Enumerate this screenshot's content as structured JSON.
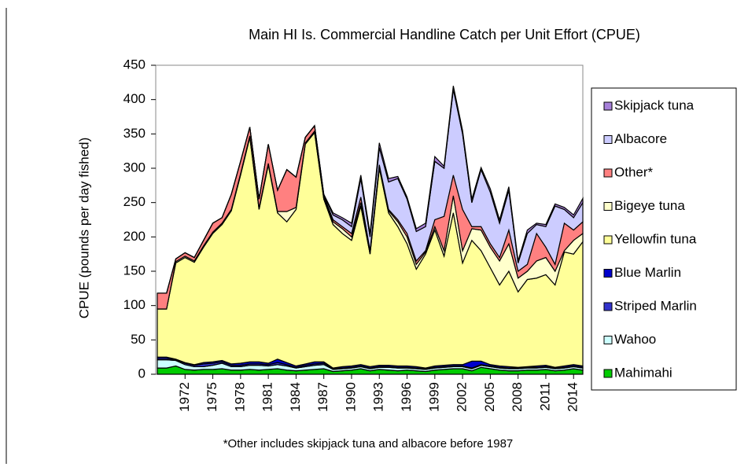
{
  "chart_data": {
    "type": "stacked_area",
    "title": "Main HI Is. Commercial Handline Catch per Unit Effort (CPUE)",
    "y_label": "CPUE (pounds per day fished)",
    "note": "*Other includes skipjack tuna and albacore before 1987",
    "x": [
      1969,
      1970,
      1971,
      1972,
      1973,
      1974,
      1975,
      1976,
      1977,
      1978,
      1979,
      1980,
      1981,
      1982,
      1983,
      1984,
      1985,
      1986,
      1987,
      1988,
      1989,
      1990,
      1991,
      1992,
      1993,
      1994,
      1995,
      1996,
      1997,
      1998,
      1999,
      2000,
      2001,
      2002,
      2003,
      2004,
      2005,
      2006,
      2007,
      2008,
      2009,
      2010,
      2011,
      2012,
      2013,
      2014,
      2015
    ],
    "xlim": [
      1969,
      2015
    ],
    "xticks": [
      1972,
      1975,
      1978,
      1981,
      1984,
      1987,
      1990,
      1993,
      1996,
      1999,
      2002,
      2005,
      2008,
      2011,
      2014
    ],
    "ylim": [
      0,
      450
    ],
    "yticks": [
      0,
      50,
      100,
      150,
      200,
      250,
      300,
      350,
      400,
      450
    ],
    "series": [
      {
        "name": "Mahimahi",
        "color": "#00cc00",
        "values": [
          9,
          9,
          12,
          7,
          6,
          7,
          7,
          8,
          6,
          6,
          7,
          6,
          7,
          8,
          6,
          5,
          6,
          7,
          8,
          4,
          5,
          6,
          8,
          5,
          7,
          6,
          5,
          6,
          5,
          4,
          6,
          7,
          8,
          8,
          5,
          10,
          8,
          6,
          5,
          5,
          6,
          6,
          7,
          5,
          6,
          8,
          6
        ]
      },
      {
        "name": "Wahoo",
        "color": "#ccffff",
        "values": [
          12,
          12,
          8,
          7,
          5,
          4,
          6,
          8,
          5,
          5,
          6,
          7,
          5,
          6,
          6,
          4,
          5,
          6,
          6,
          3,
          3,
          3,
          3,
          3,
          3,
          4,
          4,
          3,
          3,
          3,
          3,
          3,
          3,
          3,
          3,
          3,
          3,
          3,
          3,
          3,
          3,
          3,
          3,
          3,
          3,
          3,
          3
        ]
      },
      {
        "name": "Striped Marlin",
        "color": "#3333cc",
        "values": [
          2,
          2,
          1,
          2,
          2,
          4,
          3,
          2,
          2,
          2,
          2,
          2,
          2,
          3,
          2,
          1,
          2,
          2,
          2,
          1,
          1,
          1,
          1,
          1,
          1,
          1,
          1,
          1,
          1,
          1,
          1,
          1,
          1,
          1,
          1,
          1,
          1,
          1,
          1,
          1,
          1,
          1,
          1,
          1,
          1,
          1,
          1
        ]
      },
      {
        "name": "Blue Marlin",
        "color": "#0000cc",
        "values": [
          2,
          2,
          1,
          1,
          1,
          2,
          2,
          2,
          2,
          3,
          3,
          3,
          2,
          5,
          3,
          2,
          2,
          3,
          2,
          1,
          2,
          2,
          2,
          2,
          2,
          2,
          2,
          2,
          2,
          1,
          2,
          2,
          2,
          2,
          10,
          5,
          2,
          2,
          2,
          1,
          1,
          2,
          2,
          1,
          2,
          2,
          2
        ]
      },
      {
        "name": "Yellowfin tuna",
        "color": "#ffff99",
        "values": [
          70,
          70,
          140,
          153,
          149,
          168,
          187,
          198,
          223,
          274,
          327,
          222,
          289,
          213,
          205,
          228,
          320,
          334,
          237,
          209,
          194,
          183,
          231,
          164,
          287,
          222,
          203,
          178,
          142,
          166,
          198,
          159,
          221,
          148,
          176,
          161,
          141,
          118,
          139,
          110,
          127,
          128,
          132,
          120,
          166,
          161,
          181
        ]
      },
      {
        "name": "Bigeye tuna",
        "color": "#ffffcc",
        "values": [
          0,
          0,
          2,
          2,
          2,
          2,
          2,
          2,
          2,
          2,
          2,
          2,
          2,
          2,
          15,
          3,
          2,
          2,
          3,
          4,
          7,
          5,
          5,
          3,
          2,
          3,
          7,
          10,
          7,
          3,
          5,
          8,
          25,
          18,
          17,
          30,
          30,
          35,
          40,
          20,
          12,
          25,
          25,
          20,
          2,
          20,
          12
        ]
      },
      {
        "name": "Other*",
        "color": "#ff8080",
        "values": [
          23,
          23,
          4,
          5,
          5,
          8,
          13,
          8,
          22,
          18,
          13,
          13,
          28,
          31,
          61,
          44,
          8,
          8,
          2,
          3,
          3,
          5,
          8,
          2,
          3,
          2,
          3,
          5,
          5,
          2,
          10,
          50,
          30,
          60,
          3,
          5,
          5,
          5,
          20,
          10,
          10,
          40,
          15,
          10,
          40,
          15,
          17
        ]
      },
      {
        "name": "Albacore",
        "color": "#ccccff",
        "values": [
          0,
          0,
          0,
          0,
          0,
          0,
          0,
          0,
          0,
          0,
          0,
          0,
          0,
          0,
          0,
          0,
          0,
          0,
          2,
          7,
          10,
          10,
          27,
          20,
          25,
          40,
          60,
          50,
          43,
          35,
          85,
          70,
          125,
          110,
          35,
          83,
          75,
          50,
          58,
          12,
          45,
          13,
          30,
          85,
          20,
          18,
          28
        ]
      },
      {
        "name": "Skipjack tuna",
        "color": "#a680d9",
        "values": [
          0,
          0,
          0,
          0,
          0,
          0,
          0,
          0,
          0,
          0,
          0,
          0,
          0,
          0,
          0,
          0,
          0,
          0,
          0,
          3,
          3,
          5,
          5,
          5,
          7,
          5,
          3,
          3,
          4,
          5,
          7,
          3,
          5,
          5,
          5,
          3,
          5,
          5,
          5,
          3,
          5,
          2,
          3,
          3,
          3,
          4,
          6
        ]
      }
    ]
  }
}
